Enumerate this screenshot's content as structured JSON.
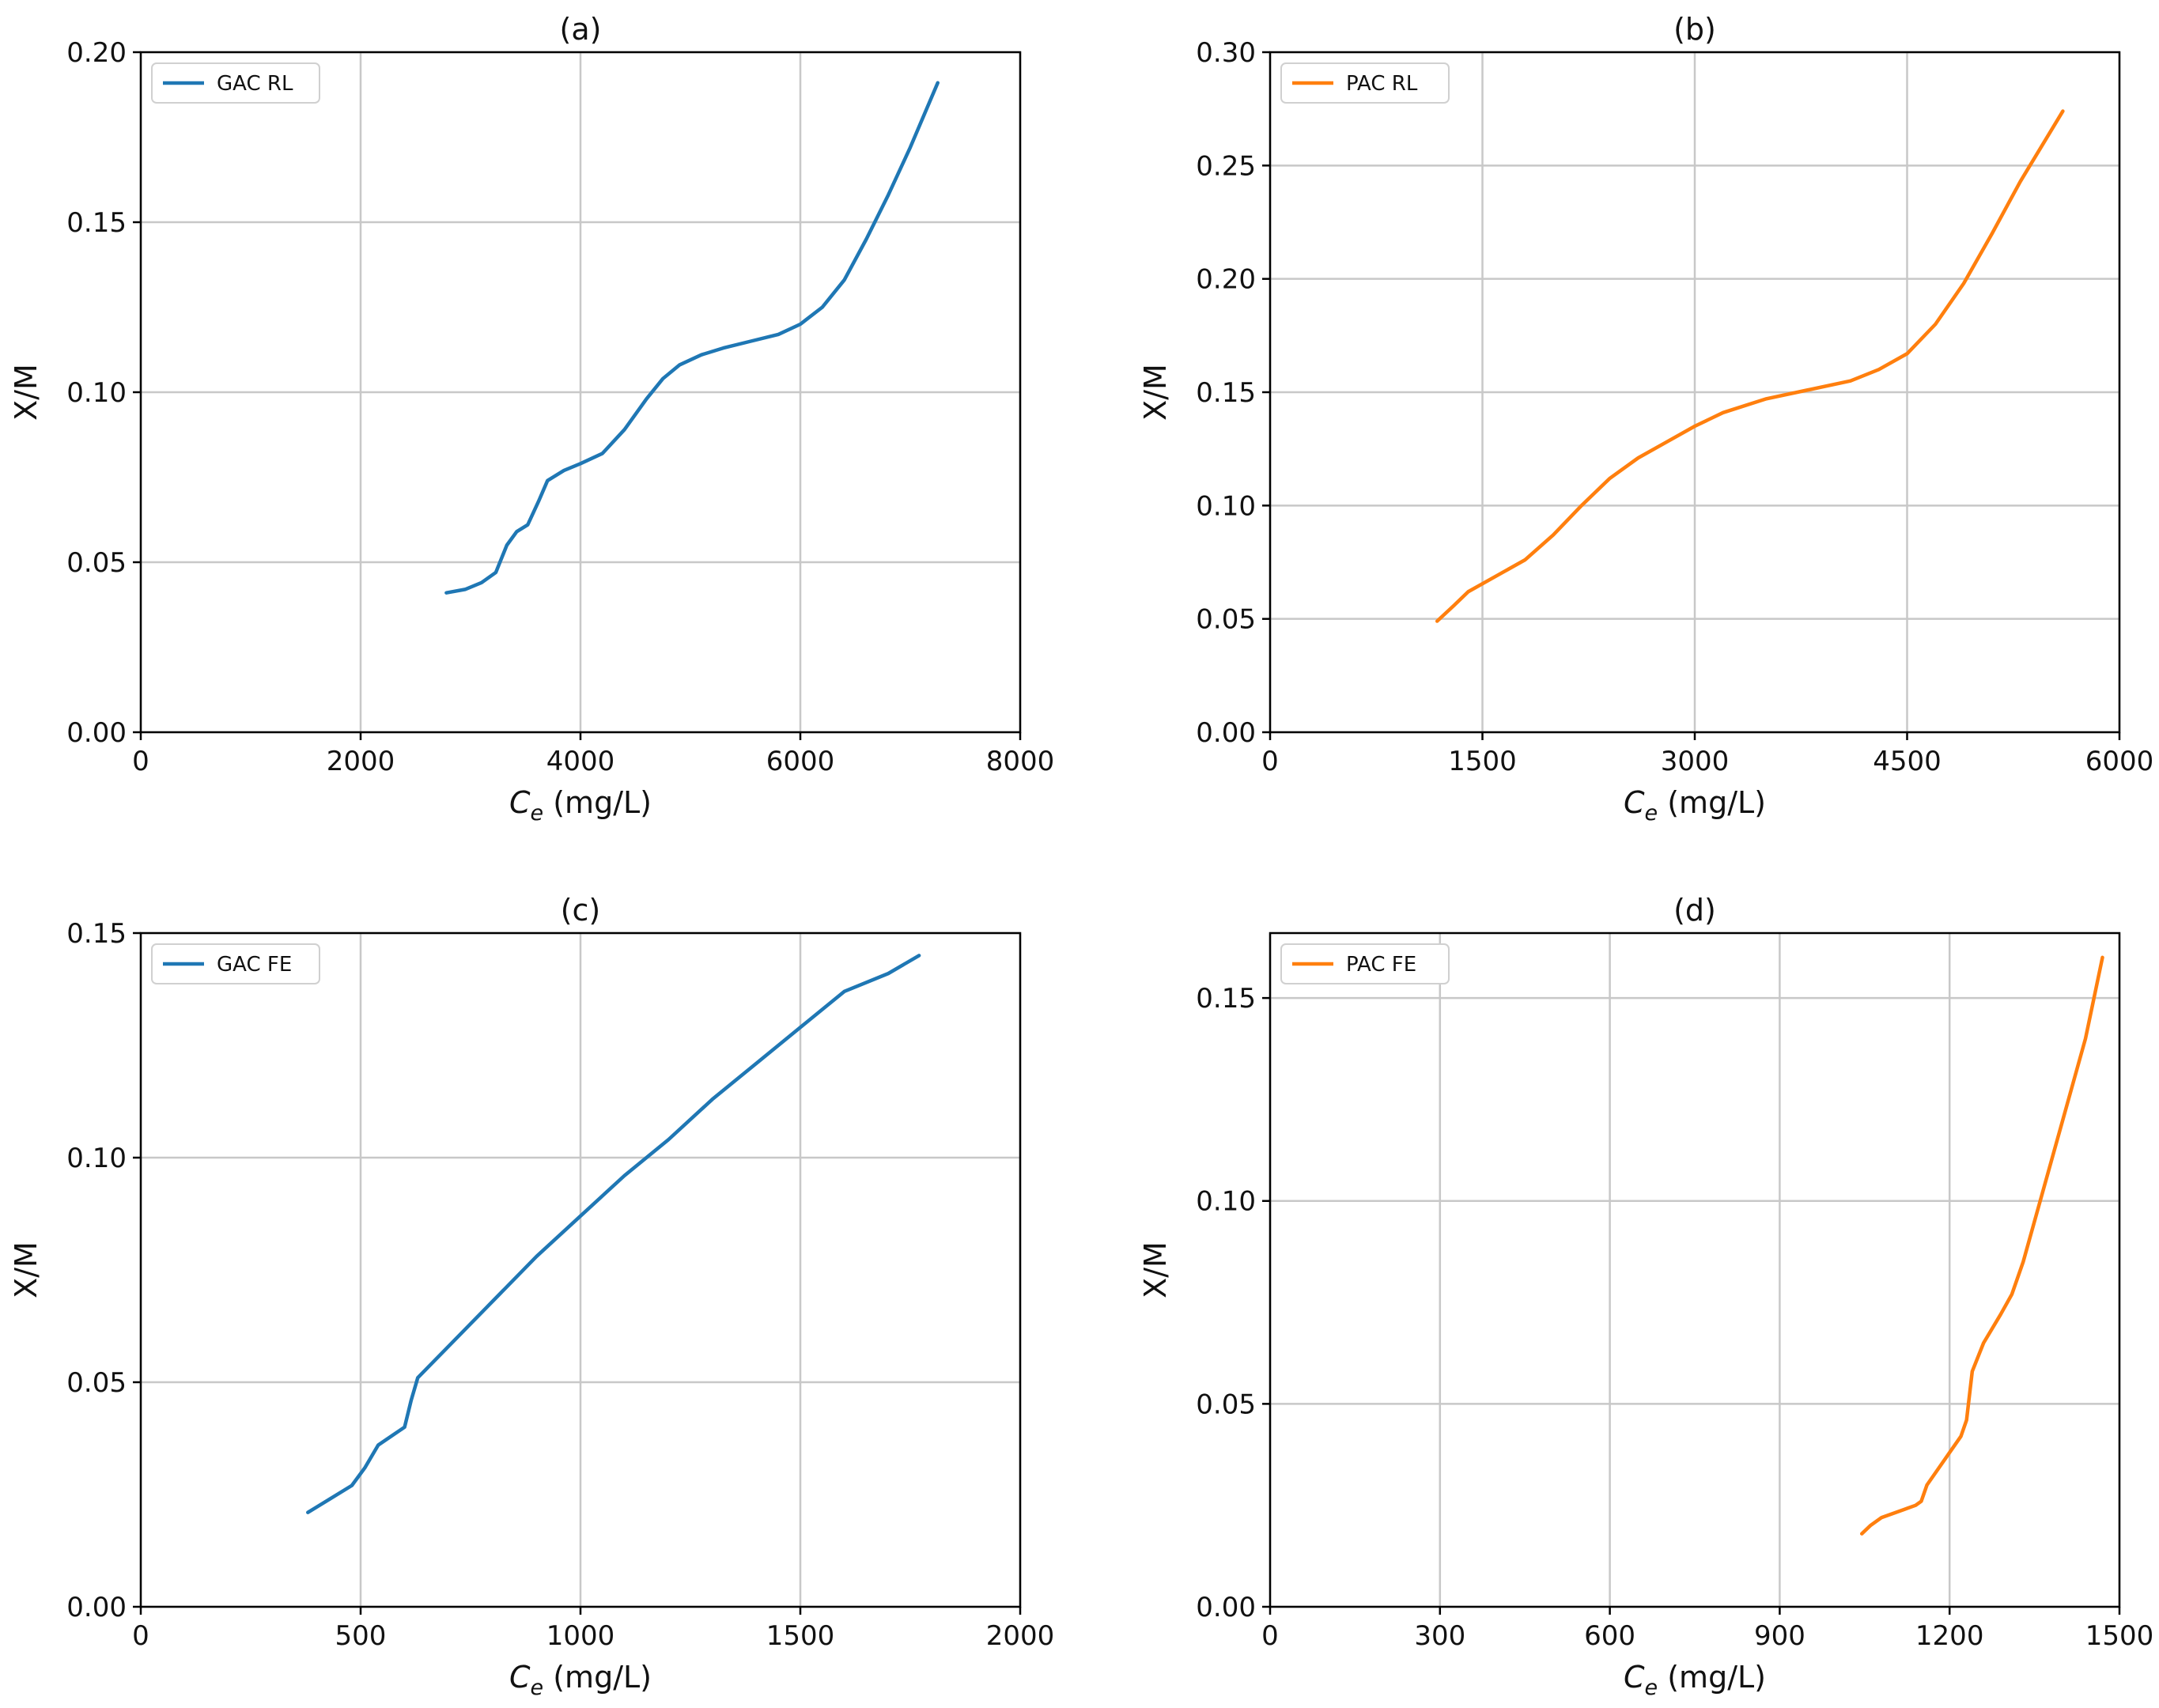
{
  "chart_data": [
    {
      "type": "line",
      "title": "(a)",
      "xlabel_main": "C",
      "xlabel_sub": "e",
      "xlabel_unit": " (mg/L)",
      "ylabel": "X/M",
      "xlim": [
        0,
        8000
      ],
      "ylim": [
        0,
        0.2
      ],
      "xticks": [
        0,
        2000,
        4000,
        6000,
        8000
      ],
      "yticks": [
        0.0,
        0.05,
        0.1,
        0.15,
        0.2
      ],
      "xtick_labels": [
        "0",
        "2000",
        "4000",
        "6000",
        "8000"
      ],
      "ytick_labels": [
        "0.00",
        "0.05",
        "0.10",
        "0.15",
        "0.20"
      ],
      "grid": true,
      "legend_position": "top-left",
      "series": [
        {
          "name": "GAC RL",
          "color": "#1f77b4",
          "x": [
            2780,
            2950,
            3100,
            3230,
            3330,
            3420,
            3520,
            3620,
            3700,
            3850,
            4000,
            4200,
            4400,
            4600,
            4750,
            4900,
            5100,
            5300,
            5550,
            5800,
            6000,
            6200,
            6400,
            6600,
            6800,
            7000,
            7250
          ],
          "y": [
            0.041,
            0.042,
            0.044,
            0.047,
            0.055,
            0.059,
            0.061,
            0.068,
            0.074,
            0.077,
            0.079,
            0.082,
            0.089,
            0.098,
            0.104,
            0.108,
            0.111,
            0.113,
            0.115,
            0.117,
            0.12,
            0.125,
            0.133,
            0.145,
            0.158,
            0.172,
            0.191
          ]
        }
      ]
    },
    {
      "type": "line",
      "title": "(b)",
      "xlabel_main": "C",
      "xlabel_sub": "e",
      "xlabel_unit": " (mg/L)",
      "ylabel": "X/M",
      "xlim": [
        0,
        6000
      ],
      "ylim": [
        0,
        0.3
      ],
      "xticks": [
        0,
        1500,
        3000,
        4500,
        6000
      ],
      "yticks": [
        0.0,
        0.05,
        0.1,
        0.15,
        0.2,
        0.25,
        0.3
      ],
      "xtick_labels": [
        "0",
        "1500",
        "3000",
        "4500",
        "6000"
      ],
      "ytick_labels": [
        "0.00",
        "0.05",
        "0.10",
        "0.15",
        "0.20",
        "0.25",
        "0.30"
      ],
      "grid": true,
      "legend_position": "top-left",
      "series": [
        {
          "name": "PAC RL",
          "color": "#ff7f0e",
          "x": [
            1180,
            1300,
            1400,
            1600,
            1800,
            2000,
            2200,
            2400,
            2600,
            2800,
            3000,
            3200,
            3500,
            3800,
            4100,
            4300,
            4500,
            4700,
            4900,
            5100,
            5300,
            5600
          ],
          "y": [
            0.049,
            0.056,
            0.062,
            0.069,
            0.076,
            0.087,
            0.1,
            0.112,
            0.121,
            0.128,
            0.135,
            0.141,
            0.147,
            0.151,
            0.155,
            0.16,
            0.167,
            0.18,
            0.198,
            0.22,
            0.243,
            0.274
          ]
        }
      ]
    },
    {
      "type": "line",
      "title": "(c)",
      "xlabel_main": "C",
      "xlabel_sub": "e",
      "xlabel_unit": " (mg/L)",
      "ylabel": "X/M",
      "xlim": [
        0,
        2000
      ],
      "ylim": [
        0,
        0.15
      ],
      "xticks": [
        0,
        500,
        1000,
        1500,
        2000
      ],
      "yticks": [
        0.0,
        0.05,
        0.1,
        0.15
      ],
      "xtick_labels": [
        "0",
        "500",
        "1000",
        "1500",
        "2000"
      ],
      "ytick_labels": [
        "0.00",
        "0.05",
        "0.10",
        "0.15"
      ],
      "grid": true,
      "legend_position": "top-left",
      "series": [
        {
          "name": "GAC FE",
          "color": "#1f77b4",
          "x": [
            380,
            430,
            480,
            510,
            540,
            570,
            600,
            615,
            630,
            700,
            800,
            900,
            1000,
            1100,
            1200,
            1300,
            1400,
            1500,
            1600,
            1700,
            1770
          ],
          "y": [
            0.021,
            0.024,
            0.027,
            0.031,
            0.036,
            0.038,
            0.04,
            0.046,
            0.051,
            0.058,
            0.068,
            0.078,
            0.087,
            0.096,
            0.104,
            0.113,
            0.121,
            0.129,
            0.137,
            0.141,
            0.145
          ]
        }
      ]
    },
    {
      "type": "line",
      "title": "(d)",
      "xlabel_main": "C",
      "xlabel_sub": "e",
      "xlabel_unit": " (mg/L)",
      "ylabel": "X/M",
      "xlim": [
        0,
        1500
      ],
      "ylim": [
        0,
        0.166
      ],
      "xticks": [
        0,
        300,
        600,
        900,
        1200,
        1500
      ],
      "yticks": [
        0.0,
        0.05,
        0.1,
        0.15
      ],
      "xtick_labels": [
        "0",
        "300",
        "600",
        "900",
        "1200",
        "1500"
      ],
      "ytick_labels": [
        "0.00",
        "0.05",
        "0.10",
        "0.15"
      ],
      "grid": true,
      "legend_position": "top-left",
      "series": [
        {
          "name": "PAC FE",
          "color": "#ff7f0e",
          "x": [
            1045,
            1060,
            1080,
            1100,
            1120,
            1140,
            1150,
            1160,
            1180,
            1200,
            1220,
            1230,
            1240,
            1260,
            1290,
            1310,
            1330,
            1360,
            1400,
            1440,
            1470
          ],
          "y": [
            0.018,
            0.02,
            0.022,
            0.023,
            0.024,
            0.025,
            0.026,
            0.03,
            0.034,
            0.038,
            0.042,
            0.046,
            0.058,
            0.065,
            0.072,
            0.077,
            0.085,
            0.1,
            0.12,
            0.14,
            0.16
          ]
        }
      ]
    }
  ]
}
